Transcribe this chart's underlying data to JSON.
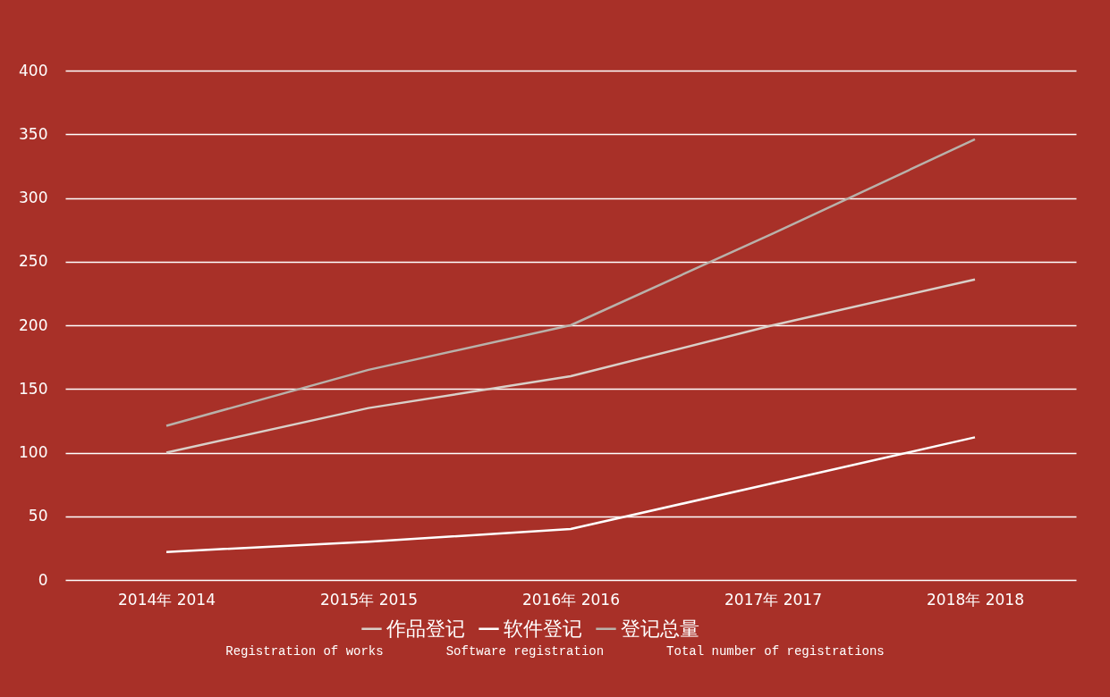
{
  "chart_data": {
    "type": "line",
    "categories": [
      "2014年 2014",
      "2015年 2015",
      "2016年 2016",
      "2017年 2017",
      "2018年 2018"
    ],
    "series": [
      {
        "name": "作品登记",
        "color": "#d9cfc8",
        "values": [
          100,
          135,
          160,
          200,
          236
        ]
      },
      {
        "name": "软件登记",
        "color": "#ffffff",
        "values": [
          22,
          30,
          40,
          76,
          112
        ]
      },
      {
        "name": "登记总量",
        "color": "#b9b1aa",
        "values": [
          121,
          165,
          200,
          272,
          346
        ]
      }
    ],
    "ylim": [
      0,
      400
    ],
    "yticks": [
      0,
      50,
      100,
      150,
      200,
      250,
      300,
      350,
      400
    ],
    "grid": "y",
    "legend": "bottom",
    "marker": "none",
    "line_style": "solid",
    "annotations": [
      "Registration of works",
      "Software registration",
      "Total number of registrations"
    ]
  }
}
